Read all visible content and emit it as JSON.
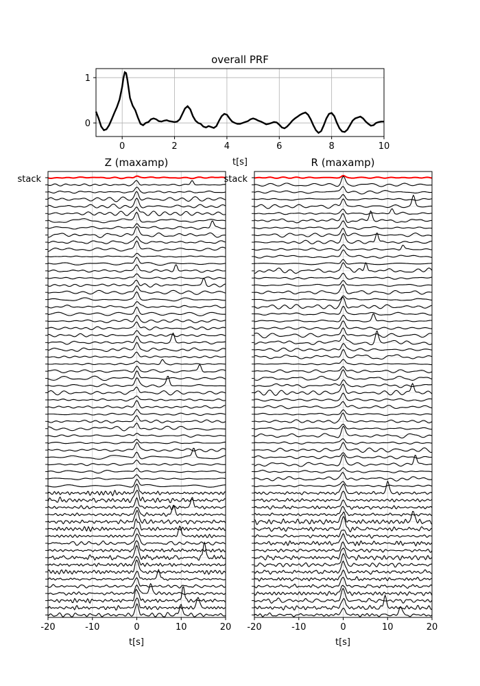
{
  "chart_data": [
    {
      "id": "prf",
      "type": "line",
      "title": "overall PRF",
      "xlabel": "t[s]",
      "ylabel": "",
      "xlim": [
        -1,
        10
      ],
      "ylim": [
        -0.3,
        1.2
      ],
      "xticks": [
        0,
        2,
        4,
        6,
        8,
        10
      ],
      "yticks": [
        0,
        1
      ],
      "grid": true,
      "line_color": "#000000",
      "series": [
        {
          "x": [
            -1,
            -0.9,
            -0.8,
            -0.7,
            -0.6,
            -0.5,
            -0.4,
            -0.3,
            -0.2,
            -0.1,
            0,
            0.05,
            0.1,
            0.15,
            0.2,
            0.3,
            0.4,
            0.5,
            0.6,
            0.7,
            0.8,
            0.9,
            1.0,
            1.1,
            1.2,
            1.3,
            1.4,
            1.5,
            1.6,
            1.7,
            1.8,
            1.9,
            2.0,
            2.1,
            2.2,
            2.3,
            2.4,
            2.5,
            2.6,
            2.7,
            2.8,
            2.9,
            3.0,
            3.1,
            3.2,
            3.3,
            3.4,
            3.5,
            3.6,
            3.7,
            3.8,
            3.9,
            4.0,
            4.1,
            4.2,
            4.3,
            4.4,
            4.5,
            4.6,
            4.7,
            4.8,
            4.9,
            5.0,
            5.1,
            5.2,
            5.3,
            5.4,
            5.5,
            5.6,
            5.7,
            5.8,
            5.9,
            6.0,
            6.1,
            6.2,
            6.3,
            6.4,
            6.5,
            6.6,
            6.7,
            6.8,
            6.9,
            7.0,
            7.1,
            7.2,
            7.3,
            7.4,
            7.5,
            7.6,
            7.7,
            7.8,
            7.9,
            8.0,
            8.1,
            8.2,
            8.3,
            8.4,
            8.5,
            8.6,
            8.7,
            8.8,
            8.9,
            9.0,
            9.1,
            9.2,
            9.3,
            9.4,
            9.5,
            9.6,
            9.7,
            9.8,
            9.9,
            10.0
          ],
          "y": [
            0.25,
            0.1,
            -0.08,
            -0.16,
            -0.14,
            -0.05,
            0.08,
            0.22,
            0.35,
            0.52,
            0.8,
            1.0,
            1.12,
            1.1,
            0.95,
            0.55,
            0.38,
            0.28,
            0.12,
            -0.02,
            -0.05,
            0.0,
            0.02,
            0.08,
            0.1,
            0.08,
            0.04,
            0.03,
            0.05,
            0.06,
            0.04,
            0.03,
            0.02,
            0.03,
            0.08,
            0.2,
            0.32,
            0.37,
            0.3,
            0.15,
            0.05,
            0.0,
            -0.02,
            -0.08,
            -0.1,
            -0.07,
            -0.09,
            -0.11,
            -0.07,
            0.05,
            0.15,
            0.2,
            0.18,
            0.1,
            0.03,
            0.0,
            -0.02,
            -0.02,
            0.0,
            0.02,
            0.04,
            0.08,
            0.1,
            0.08,
            0.05,
            0.03,
            0.0,
            -0.03,
            -0.02,
            0.0,
            0.02,
            0.01,
            -0.04,
            -0.1,
            -0.12,
            -0.08,
            -0.02,
            0.05,
            0.1,
            0.14,
            0.18,
            0.21,
            0.23,
            0.18,
            0.08,
            -0.05,
            -0.16,
            -0.22,
            -0.18,
            -0.05,
            0.1,
            0.2,
            0.22,
            0.15,
            0.0,
            -0.12,
            -0.19,
            -0.2,
            -0.15,
            -0.05,
            0.05,
            0.1,
            0.12,
            0.14,
            0.1,
            0.03,
            -0.02,
            -0.06,
            -0.05,
            0.0,
            0.02,
            0.03,
            0.03
          ]
        }
      ]
    },
    {
      "id": "z",
      "type": "line",
      "title": "Z (maxamp)",
      "xlabel": "t[s]",
      "ylabel": "",
      "xlim": [
        -20,
        20
      ],
      "xticks": [
        -20,
        -10,
        0,
        10,
        20
      ],
      "stack_label": "stack",
      "stack_color": "#ff0000",
      "trace_color": "#000000",
      "grid": true,
      "n_traces": 62
    },
    {
      "id": "r",
      "type": "line",
      "title": "R (maxamp)",
      "xlabel": "t[s]",
      "ylabel": "",
      "xlim": [
        -20,
        20
      ],
      "xticks": [
        -20,
        -10,
        0,
        10,
        20
      ],
      "stack_label": "stack",
      "stack_color": "#ff0000",
      "trace_color": "#000000",
      "grid": true,
      "n_traces": 62
    }
  ]
}
